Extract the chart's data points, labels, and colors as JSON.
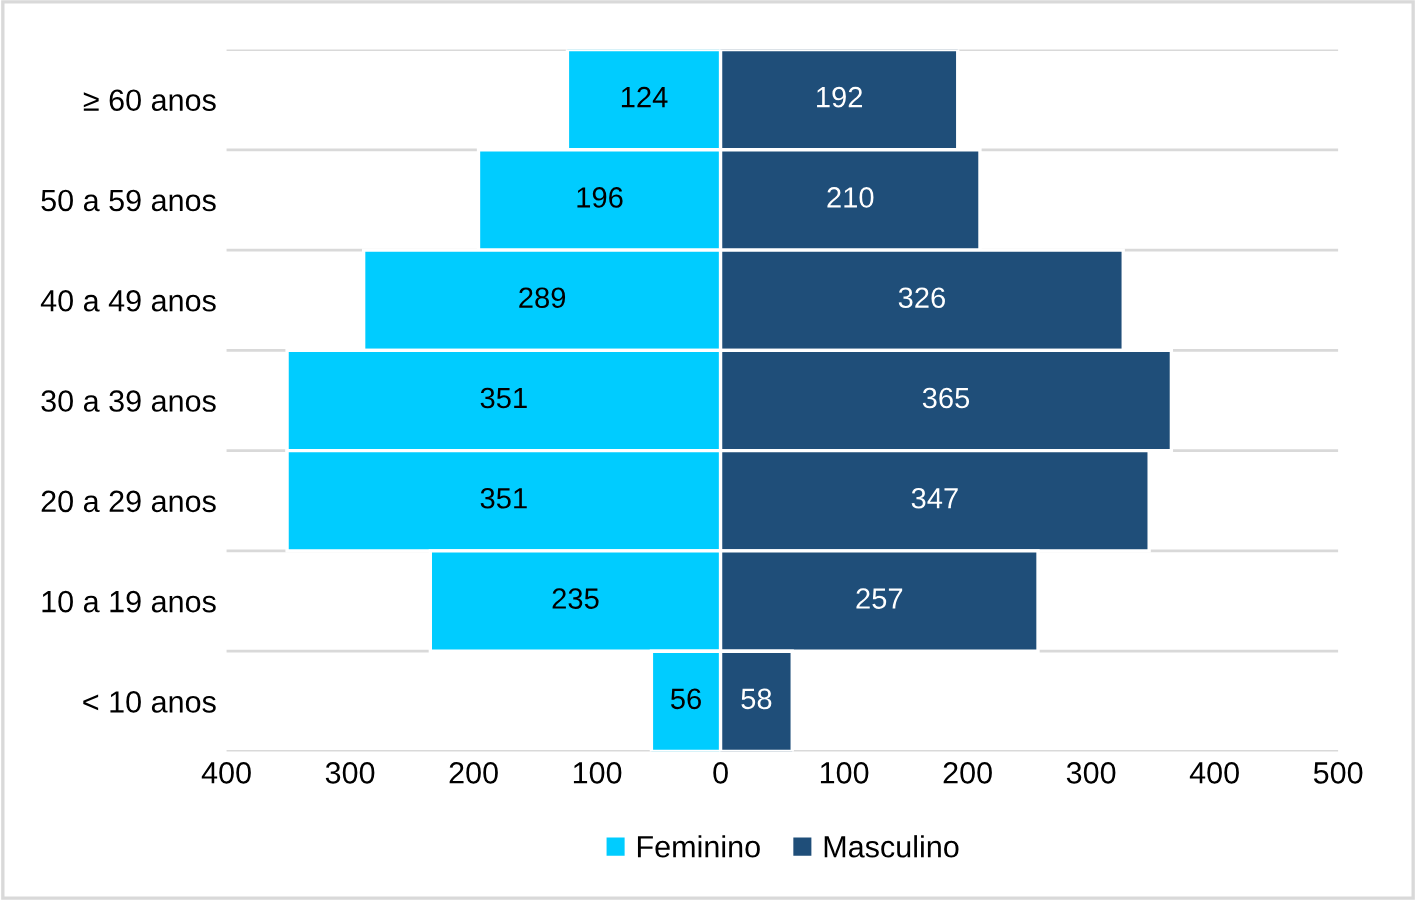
{
  "chart_data": {
    "type": "bar",
    "orientation": "horizontal",
    "categories": [
      "≥ 60 anos",
      "50 a 59 anos",
      "40 a 49 anos",
      "30 a 39 anos",
      "20 a 29 anos",
      "10 a 19 anos",
      "< 10 anos"
    ],
    "series": [
      {
        "name": "Feminino",
        "color": "#00ccff",
        "values": [
          124,
          196,
          289,
          351,
          351,
          235,
          56
        ],
        "base": [
          -124,
          -196,
          -289,
          -351,
          -351,
          -235,
          -56
        ]
      },
      {
        "name": "Masculino",
        "color": "#1f4e79",
        "values": [
          192,
          210,
          326,
          365,
          347,
          257,
          58
        ]
      }
    ],
    "data_labels": true,
    "xlim": [
      -400,
      500
    ],
    "xticks": [
      {
        "value": -400,
        "label": "400"
      },
      {
        "value": -300,
        "label": "300"
      },
      {
        "value": -200,
        "label": "200"
      },
      {
        "value": -100,
        "label": "100"
      },
      0,
      100,
      200,
      300,
      400,
      500
    ],
    "grid": "y",
    "legend": "bottom"
  }
}
